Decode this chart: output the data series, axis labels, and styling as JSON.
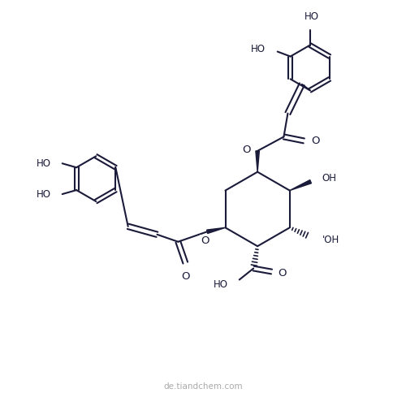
{
  "background_color": "#ffffff",
  "line_color": "#1a1a3a",
  "line_width": 1.5,
  "font_size_labels": 8.5,
  "watermark": "de.tiandchem.com",
  "watermark_color": "#aaaaaa",
  "watermark_fontsize": 7.5,
  "figsize": [
    5.0,
    5.0
  ],
  "dpi": 100,
  "xlim": [
    0,
    10
  ],
  "ylim": [
    0,
    10
  ]
}
